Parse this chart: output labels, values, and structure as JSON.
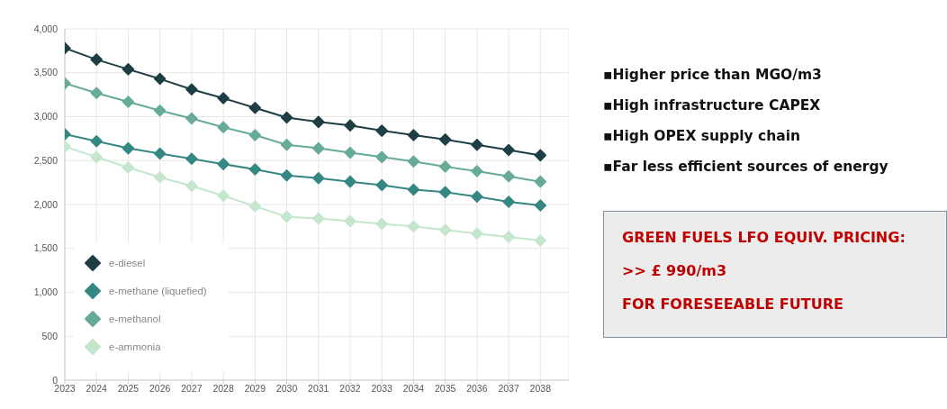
{
  "chart_data": {
    "type": "line",
    "x": [
      2023,
      2024,
      2025,
      2026,
      2027,
      2028,
      2029,
      2030,
      2031,
      2032,
      2033,
      2034,
      2035,
      2036,
      2037,
      2038
    ],
    "series": [
      {
        "name": "e-diesel",
        "color": "#1f3d44",
        "values": [
          3780,
          3650,
          3540,
          3430,
          3310,
          3210,
          3100,
          2990,
          2940,
          2900,
          2840,
          2790,
          2740,
          2680,
          2620,
          2560
        ]
      },
      {
        "name": "e-methane (liquefied)",
        "color": "#358783",
        "values": [
          2800,
          2720,
          2640,
          2580,
          2520,
          2460,
          2400,
          2330,
          2300,
          2260,
          2220,
          2170,
          2140,
          2090,
          2030,
          1990
        ]
      },
      {
        "name": "e-methanol",
        "color": "#66aa99",
        "values": [
          3380,
          3270,
          3170,
          3070,
          2980,
          2880,
          2790,
          2680,
          2640,
          2590,
          2540,
          2490,
          2430,
          2380,
          2320,
          2260
        ]
      },
      {
        "name": "e-ammonia",
        "color": "#c3e6cc",
        "values": [
          2660,
          2540,
          2420,
          2310,
          2210,
          2100,
          1980,
          1860,
          1840,
          1810,
          1780,
          1750,
          1710,
          1670,
          1630,
          1590
        ]
      }
    ],
    "xlim": [
      2023,
      2038.9
    ],
    "xticks": [
      2023,
      2024,
      2025,
      2026,
      2027,
      2028,
      2029,
      2030,
      2031,
      2032,
      2033,
      2034,
      2035,
      2036,
      2037,
      2038
    ],
    "ylim": [
      0,
      4000
    ],
    "yticks": [
      {
        "value": 0,
        "label": "0"
      },
      {
        "value": 500,
        "label": "500"
      },
      {
        "value": 1000,
        "label": "1,000"
      },
      {
        "value": 1500,
        "label": "1,500"
      },
      {
        "value": 2000,
        "label": "2,000"
      },
      {
        "value": 2500,
        "label": "2,500"
      },
      {
        "value": 3000,
        "label": "3,000"
      },
      {
        "value": 3500,
        "label": "3,500"
      },
      {
        "value": 4000,
        "label": "4,000"
      }
    ],
    "grid": true,
    "legend": "bottom left",
    "marker": "diamond",
    "line_style": "solid",
    "annotations": [
      "▪Higher price than MGO/m3",
      "▪High infrastructure CAPEX",
      "▪High OPEX supply chain",
      "▪Far less efficient sources of energy",
      "GREEN FUELS LFO EQUIV. PRICING:",
      ">> £ 990/m3",
      "FOR FORESEEABLE FUTURE"
    ]
  }
}
